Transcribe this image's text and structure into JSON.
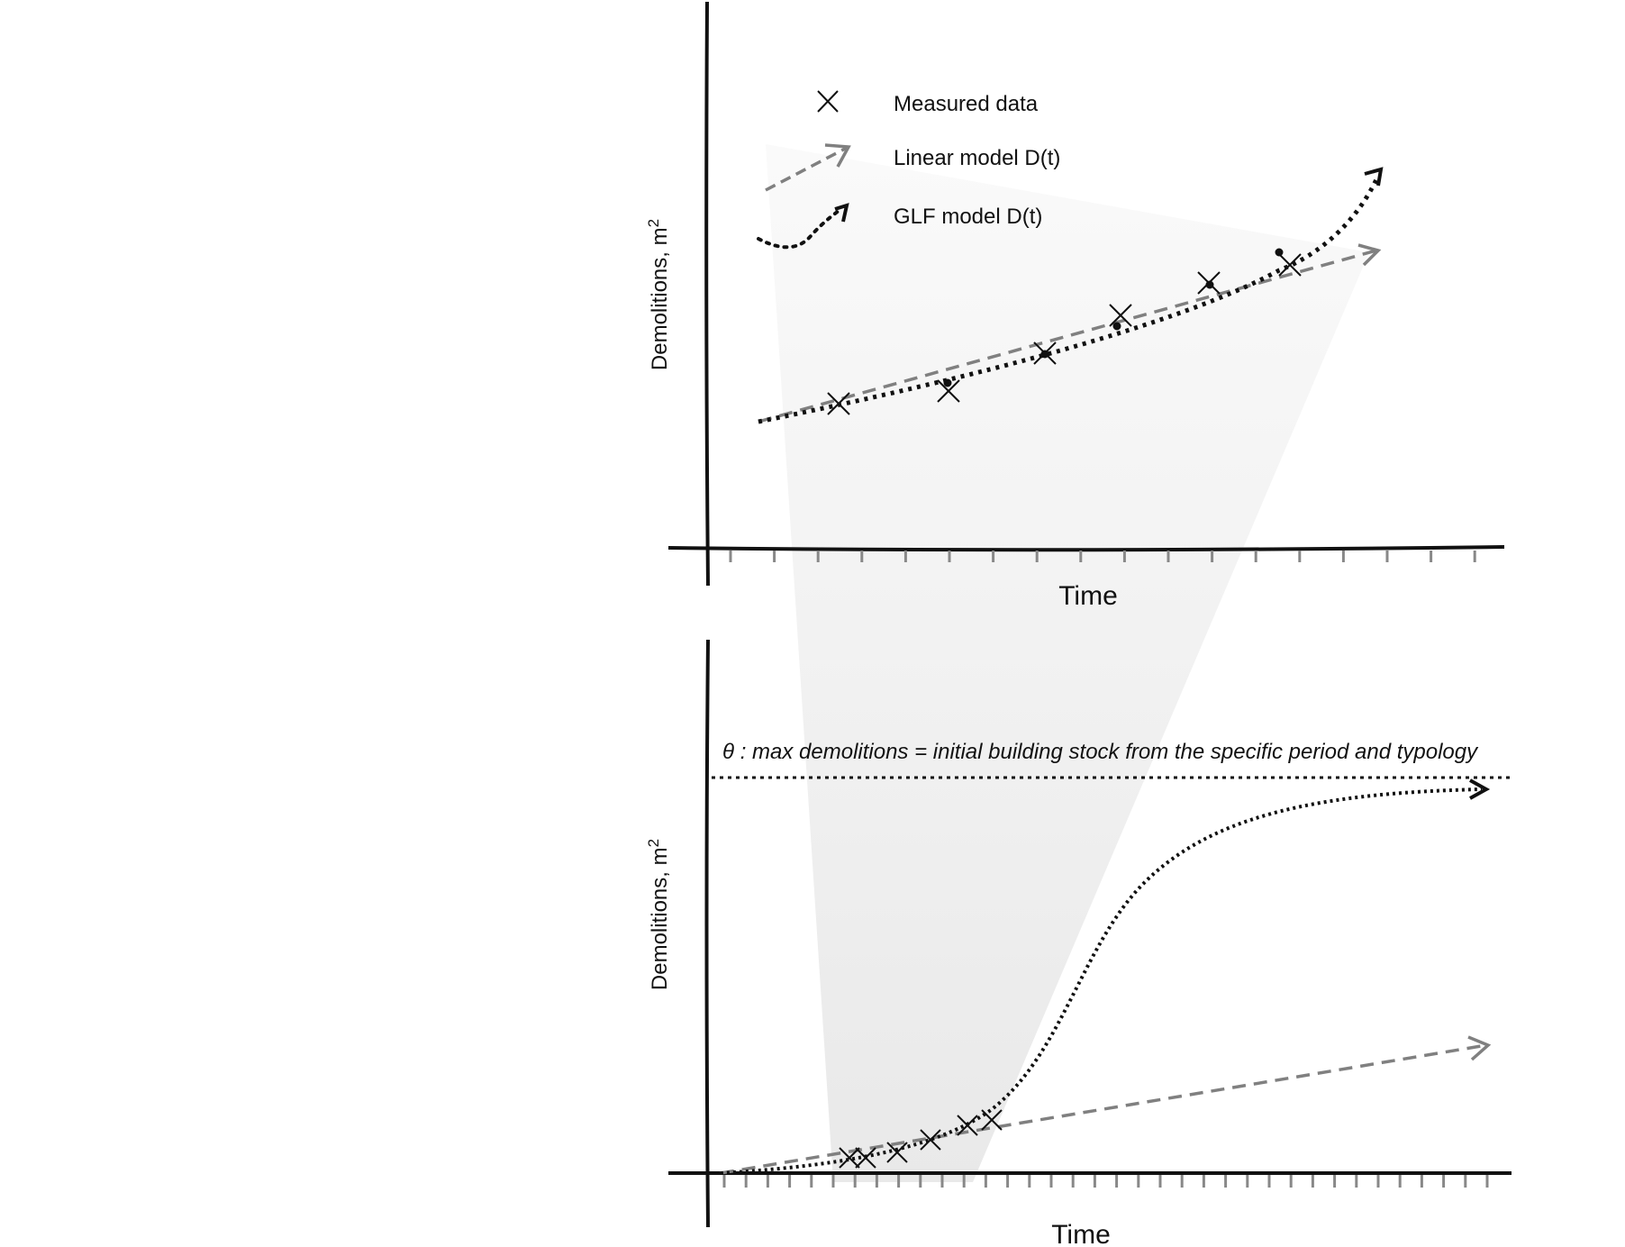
{
  "colors": {
    "axis": "#111111",
    "tick": "#888888",
    "linear_model": "#808080",
    "glf_model": "#111111",
    "measured": "#111111",
    "funnel_top": "#fafafa",
    "funnel_bottom": "#e9e9e9"
  },
  "legend": {
    "measured_label": "Measured data",
    "linear_label": "Linear model D(t)",
    "glf_label": "GLF model D(t)"
  },
  "top_panel": {
    "xlabel": "Time",
    "ylabel": "Demolitions, m",
    "ylabel_sup": "2"
  },
  "bottom_panel": {
    "xlabel": "Time",
    "ylabel": "Demolitions, m",
    "ylabel_sup": "2",
    "theta_label": "θ : max demolitions = initial building stock from the specific period and typology"
  },
  "icons": {
    "measured_marker": "x-cross-icon",
    "model_arrowhead": "open-arrow-icon"
  }
}
